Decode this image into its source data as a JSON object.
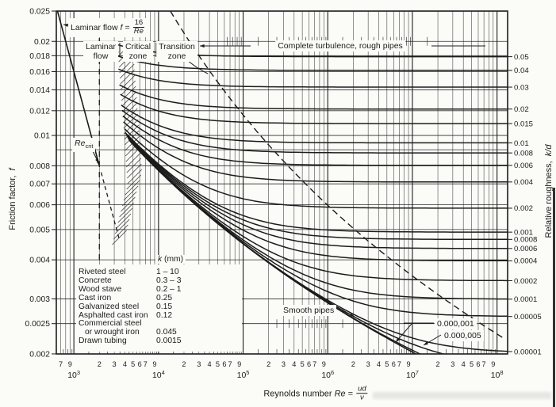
{
  "colors": {
    "ink": "#1c1c1c",
    "paper": "#fbfbf8"
  },
  "chart_data": {
    "type": "line",
    "description": "Moody diagram: friction factor vs Reynolds number for relative roughness values",
    "x_axis": {
      "label_prefix": "Reynolds number",
      "label_sym": "Re",
      "label_eq": "=",
      "frac_num": "ud",
      "frac_den": "ν",
      "scale": "log",
      "min": 620,
      "max": 133000000,
      "decades": [
        3,
        4,
        5,
        6,
        7,
        8
      ],
      "minor_tick_labels": [
        "2",
        "3",
        "4",
        "5",
        "6",
        "7",
        "9"
      ],
      "pre_decade_labels": [
        "7",
        "9"
      ]
    },
    "y_left": {
      "label_prefix": "Friction factor,",
      "label_sym": "f",
      "scale": "log",
      "min": 0.002,
      "max": 0.025,
      "tick_labels": [
        "0.025",
        "0.02",
        "0.018",
        "0.016",
        "0.014",
        "0.012",
        "0.01",
        "0.008",
        "0.007",
        "0.006",
        "0.005",
        "0.004",
        "0.003",
        "0.0025",
        "0.002"
      ],
      "gridlines": [
        0.02,
        0.018,
        0.016,
        0.014,
        0.012,
        0.01,
        0.009,
        0.008,
        0.007,
        0.006,
        0.005,
        0.004,
        0.003,
        0.0025
      ]
    },
    "y_right": {
      "label_prefix": "Relative roughness,",
      "label_sym": "k/d",
      "tick_labels": [
        "0.05",
        "0.04",
        "0.03",
        "0.02",
        "0.015",
        "0.01",
        "0.008",
        "0.006",
        "0.004",
        "0.002",
        "0.001",
        "0.0008",
        "0.0006",
        "0.0004",
        "0.0002",
        "0.0001",
        "0.00005",
        "0.00001"
      ]
    },
    "roughness_curves": [
      0.05,
      0.04,
      0.03,
      0.02,
      0.015,
      0.01,
      0.008,
      0.006,
      0.004,
      0.002,
      0.001,
      0.0008,
      0.0006,
      0.0004,
      0.0002,
      0.0001,
      5e-05,
      1e-05,
      5e-06,
      1e-06
    ],
    "smooth_curve": true,
    "curve_model": "1/sqrt(f) = -4 log10( (k/d)/3.71 + 1.26/(Re sqrt(f)) )",
    "laminar_line": {
      "equation_num": "16",
      "equation_den": "Re",
      "re_solid": [
        640,
        2000
      ],
      "re_dashed": [
        2100,
        3400
      ],
      "re_crit": 2000
    },
    "zones": {
      "laminar": [
        "Laminar",
        "flow"
      ],
      "critical": [
        "Critical",
        "zone"
      ],
      "transition": [
        "Transition",
        "zone"
      ]
    },
    "annotations": {
      "laminar_eq_prefix": "Laminar flow",
      "laminar_eq_f": "f",
      "laminar_eq_equals": "=",
      "complete_turbulence": "Complete turbulence, rough pipes",
      "smooth_pipes": "Smooth pipes",
      "re_crit_base": "Re",
      "re_crit_sub": "crit",
      "curve_label_1e6": "0.000,001",
      "curve_label_5e6": "0.000,005"
    }
  },
  "legend_table": {
    "header_sym": "k",
    "header_unit": "(mm)",
    "rows": [
      {
        "name": "Riveted steel",
        "k": "1 – 10"
      },
      {
        "name": "Concrete",
        "k": "0.3 – 3"
      },
      {
        "name": "Wood stave",
        "k": "0.2 – 1"
      },
      {
        "name": "Cast iron",
        "k": "0.25"
      },
      {
        "name": "Galvanized steel",
        "k": "0.15"
      },
      {
        "name": "Asphalted cast iron",
        "k": "0.12"
      },
      {
        "name": "Commercial steel",
        "name2": "or wrought iron",
        "k": "0.045"
      },
      {
        "name": "Drawn tubing",
        "k": "0.0015"
      }
    ]
  }
}
